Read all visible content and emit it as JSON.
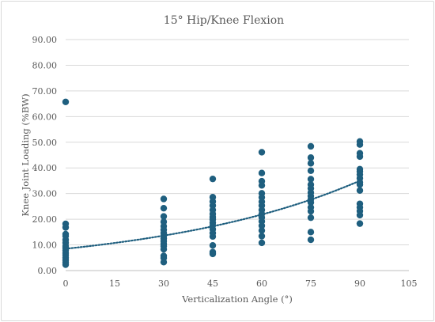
{
  "chart_data": {
    "type": "scatter",
    "title": "15° Hip/Knee Flexion",
    "xlabel": "Verticalization Angle (°)",
    "ylabel": "Knee Joint Loading (%BW)",
    "xlim": [
      0,
      105
    ],
    "ylim": [
      0,
      90
    ],
    "x_ticks": [
      "0",
      "15",
      "30",
      "45",
      "60",
      "75",
      "90",
      "105"
    ],
    "y_ticks": [
      "0.00",
      "10.00",
      "20.00",
      "30.00",
      "40.00",
      "50.00",
      "60.00",
      "70.00",
      "80.00",
      "90.00"
    ],
    "grid": "horizontal",
    "marker_color": "#1f5f7f",
    "trendline": {
      "type": "exponential",
      "style": "dotted",
      "x": [
        0,
        90
      ],
      "y_start": 8.5,
      "y_end": 35.0
    },
    "series": [
      {
        "points": [
          [
            0,
            65.7
          ],
          [
            0,
            18.2
          ],
          [
            0,
            16.8
          ],
          [
            0,
            14.2
          ],
          [
            0,
            13.5
          ],
          [
            0,
            12.0
          ],
          [
            0,
            10.8
          ],
          [
            0,
            9.6
          ],
          [
            0,
            8.8
          ],
          [
            0,
            7.9
          ],
          [
            0,
            6.8
          ],
          [
            0,
            6.0
          ],
          [
            0,
            5.0
          ],
          [
            0,
            4.0
          ],
          [
            0,
            3.1
          ],
          [
            0,
            2.3
          ],
          [
            30,
            27.9
          ],
          [
            30,
            24.3
          ],
          [
            30,
            21.1
          ],
          [
            30,
            19.0
          ],
          [
            30,
            17.3
          ],
          [
            30,
            15.9
          ],
          [
            30,
            14.7
          ],
          [
            30,
            13.6
          ],
          [
            30,
            12.5
          ],
          [
            30,
            11.5
          ],
          [
            30,
            10.4
          ],
          [
            30,
            9.5
          ],
          [
            30,
            8.3
          ],
          [
            30,
            5.7
          ],
          [
            30,
            4.9
          ],
          [
            30,
            3.3
          ],
          [
            45,
            35.7
          ],
          [
            45,
            28.6
          ],
          [
            45,
            26.9
          ],
          [
            45,
            25.3
          ],
          [
            45,
            23.6
          ],
          [
            45,
            22.1
          ],
          [
            45,
            20.9
          ],
          [
            45,
            19.9
          ],
          [
            45,
            18.7
          ],
          [
            45,
            17.6
          ],
          [
            45,
            16.1
          ],
          [
            45,
            14.6
          ],
          [
            45,
            13.3
          ],
          [
            45,
            9.8
          ],
          [
            45,
            7.2
          ],
          [
            45,
            6.5
          ],
          [
            60,
            46.1
          ],
          [
            60,
            38.0
          ],
          [
            60,
            34.8
          ],
          [
            60,
            33.2
          ],
          [
            60,
            30.1
          ],
          [
            60,
            28.5
          ],
          [
            60,
            26.8
          ],
          [
            60,
            25.3
          ],
          [
            60,
            23.6
          ],
          [
            60,
            22.1
          ],
          [
            60,
            20.7
          ],
          [
            60,
            19.2
          ],
          [
            60,
            17.5
          ],
          [
            60,
            15.6
          ],
          [
            60,
            13.4
          ],
          [
            60,
            10.8
          ],
          [
            75,
            48.4
          ],
          [
            75,
            44.0
          ],
          [
            75,
            41.8
          ],
          [
            75,
            38.9
          ],
          [
            75,
            35.6
          ],
          [
            75,
            33.5
          ],
          [
            75,
            32.0
          ],
          [
            75,
            30.4
          ],
          [
            75,
            29.0
          ],
          [
            75,
            27.7
          ],
          [
            75,
            26.5
          ],
          [
            75,
            24.6
          ],
          [
            75,
            23.1
          ],
          [
            75,
            20.6
          ],
          [
            75,
            15.0
          ],
          [
            75,
            12.0
          ],
          [
            90,
            50.3
          ],
          [
            90,
            49.1
          ],
          [
            90,
            45.7
          ],
          [
            90,
            44.4
          ],
          [
            90,
            39.5
          ],
          [
            90,
            38.6
          ],
          [
            90,
            37.4
          ],
          [
            90,
            36.0
          ],
          [
            90,
            34.4
          ],
          [
            90,
            33.5
          ],
          [
            90,
            26.0
          ],
          [
            90,
            24.6
          ],
          [
            90,
            23.2
          ],
          [
            90,
            21.6
          ],
          [
            90,
            18.3
          ],
          [
            90,
            31.2
          ]
        ]
      }
    ]
  }
}
